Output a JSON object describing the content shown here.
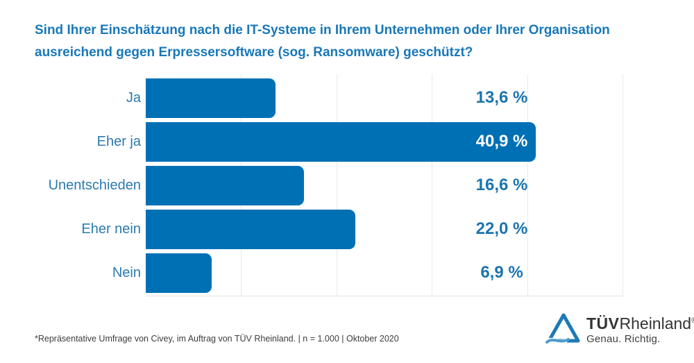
{
  "header": {
    "title_lines": [
      "Sind Ihrer Einschätzung nach die IT-Systeme in Ihrem Unternehmen oder Ihrer Organisation",
      "ausreichend gegen Erpressersoftware (sog. Ransomware) geschützt?"
    ]
  },
  "chart_data": {
    "type": "bar",
    "orientation": "horizontal",
    "title": "Sind Ihrer Einschätzung nach die IT-Systeme in Ihrem Unternehmen oder Ihrer Organisation ausreichend gegen Erpressersoftware (sog. Ransomware) geschützt?",
    "categories": [
      "Ja",
      "Eher ja",
      "Unentschieden",
      "Eher nein",
      "Nein"
    ],
    "values": [
      13.6,
      40.9,
      16.6,
      22.0,
      6.9
    ],
    "value_labels": [
      "13,6 %",
      "40,9 %",
      "16,6 %",
      "22,0 %",
      "6,9 %"
    ],
    "xlabel": "",
    "ylabel": "",
    "xlim": [
      0,
      50
    ],
    "gridline_step": 10,
    "grid": true,
    "legend": false,
    "colors": {
      "bar": "#0070B5",
      "title": "#1878B8",
      "category_label": "#2B7AAD",
      "value_label": "#1B75AF",
      "value_label_inside": "#FFFFFF",
      "gridline": "#E9E9E9"
    }
  },
  "footnote": "*Repräsentative Umfrage von Civey, im Auftrag von TÜV Rheinland. | n = 1.000 | Oktober 2020",
  "logo": {
    "brand_bold": "TÜV",
    "brand_regular": "Rheinland",
    "registered": "®",
    "tagline": "Genau. Richtig.",
    "triangle_color": "#1D79B8",
    "wave_color": "#4E9CCB"
  }
}
